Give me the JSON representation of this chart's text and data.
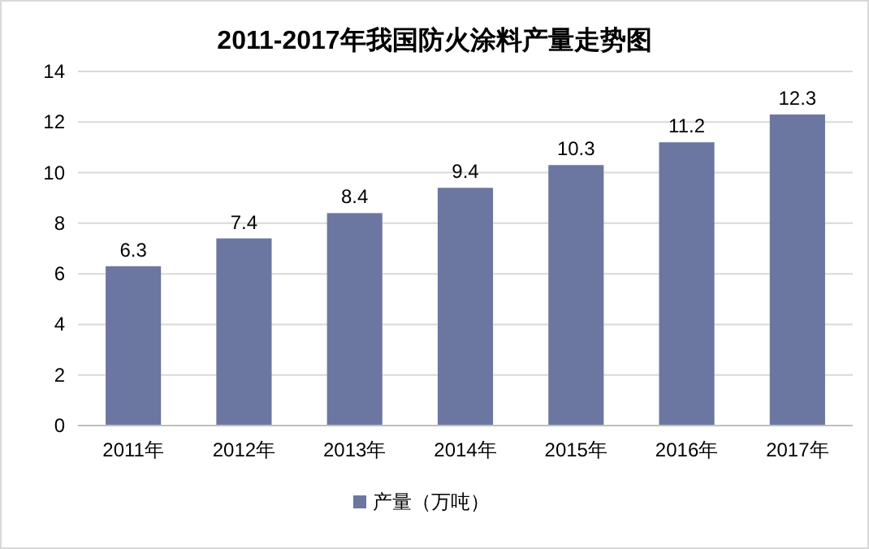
{
  "chart_data": {
    "type": "bar",
    "title": "2011-2017年我国防火涂料产量走势图",
    "categories": [
      "2011年",
      "2012年",
      "2013年",
      "2014年",
      "2015年",
      "2016年",
      "2017年"
    ],
    "series": [
      {
        "name": "产量（万吨）",
        "color": "#6b77a0",
        "values": [
          6.3,
          7.4,
          8.4,
          9.4,
          10.3,
          11.2,
          12.3
        ]
      }
    ],
    "ylim": [
      0,
      14
    ],
    "yticks": [
      0,
      2,
      4,
      6,
      8,
      10,
      12,
      14
    ],
    "grid": "y",
    "legend": "bottom",
    "data_labels": true
  }
}
